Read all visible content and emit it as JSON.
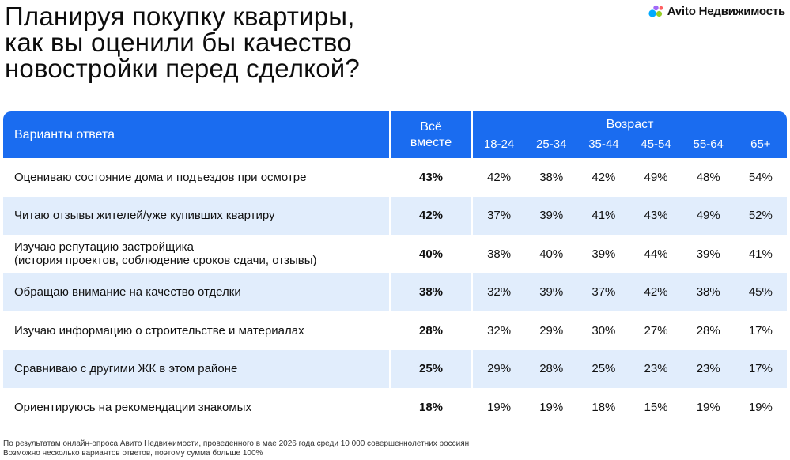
{
  "title": {
    "line1": "Планируя покупку квартиры,",
    "line2": "как вы оценили бы качество",
    "line3": "новостройки перед сделкой?"
  },
  "logo": {
    "text": "Avito Недвижимость",
    "icon": "avito-dots-icon",
    "colors": [
      "#00aaff",
      "#97cf26",
      "#a169f7",
      "#ff6163"
    ]
  },
  "table": {
    "header": {
      "answers": "Варианты ответа",
      "total": "Всё вместе",
      "age_group": "Возраст",
      "age_cols": [
        "18-24",
        "25-34",
        "35-44",
        "45-54",
        "55-64",
        "65+"
      ]
    },
    "rows": [
      {
        "label": "Оцениваю состояние дома и подъездов при осмотре",
        "label2": "",
        "total": "43%",
        "ages": [
          "42%",
          "38%",
          "42%",
          "49%",
          "48%",
          "54%"
        ]
      },
      {
        "label": "Читаю отзывы жителей/уже купивших квартиру",
        "label2": "",
        "total": "42%",
        "ages": [
          "37%",
          "39%",
          "41%",
          "43%",
          "49%",
          "52%"
        ]
      },
      {
        "label": "Изучаю репутацию застройщика",
        "label2": "(история проектов, соблюдение сроков сдачи, отзывы)",
        "total": "40%",
        "ages": [
          "38%",
          "40%",
          "39%",
          "44%",
          "39%",
          "41%"
        ]
      },
      {
        "label": "Обращаю внимание на качество отделки",
        "label2": "",
        "total": "38%",
        "ages": [
          "32%",
          "39%",
          "37%",
          "42%",
          "38%",
          "45%"
        ]
      },
      {
        "label": "Изучаю информацию о строительстве и материалах",
        "label2": "",
        "total": "28%",
        "ages": [
          "32%",
          "29%",
          "30%",
          "27%",
          "28%",
          "17%"
        ]
      },
      {
        "label": "Сравниваю с другими ЖК в этом районе",
        "label2": "",
        "total": "25%",
        "ages": [
          "29%",
          "28%",
          "25%",
          "23%",
          "23%",
          "17%"
        ]
      },
      {
        "label": "Ориентируюсь на рекомендации знакомых",
        "label2": "",
        "total": "18%",
        "ages": [
          "19%",
          "19%",
          "18%",
          "15%",
          "19%",
          "19%"
        ]
      }
    ]
  },
  "footnote": {
    "line1": "По результатам онлайн-опроса Авито Недвижимости, проведенного в мае 2026 года среди 10 000 совершеннолетних россиян",
    "line2": "Возможно несколько вариантов ответов, поэтому сумма больше 100%"
  },
  "colors": {
    "header_bg": "#1a6cf0",
    "row_shade": "#e1edfc",
    "text": "#111111"
  }
}
